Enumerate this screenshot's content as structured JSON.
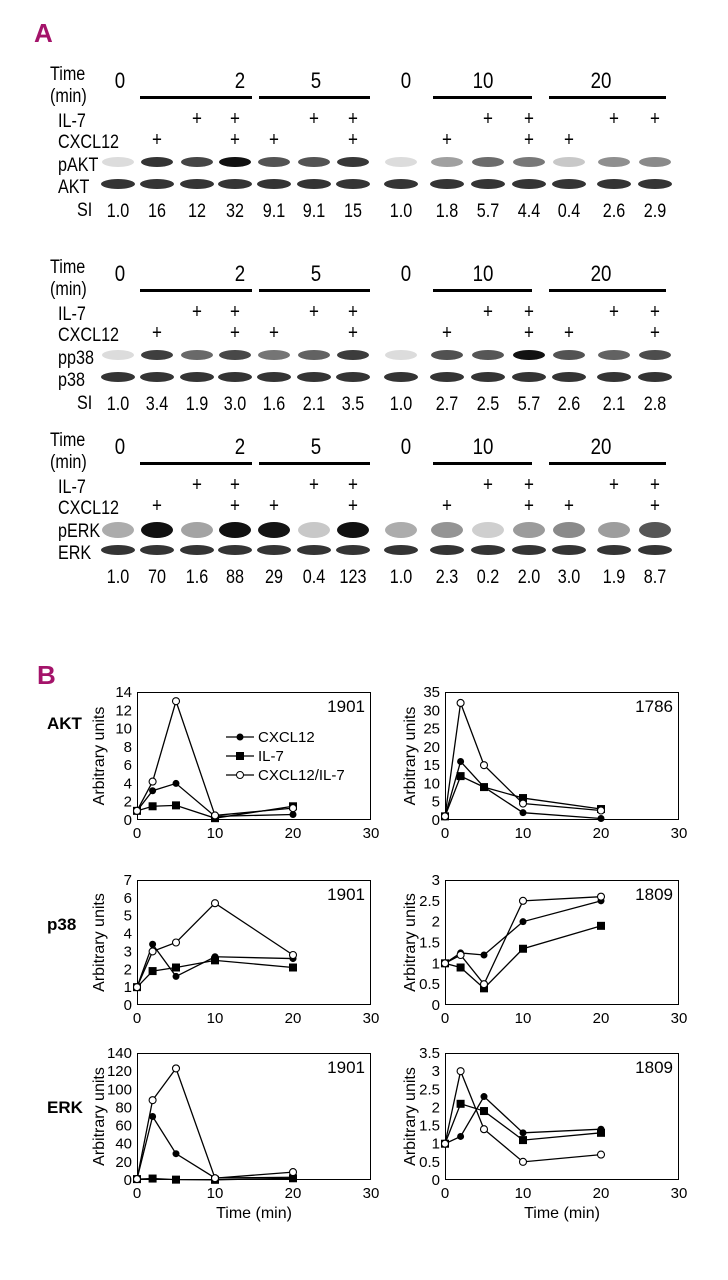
{
  "panel_a_label": "A",
  "panel_b_label": "B",
  "blot_labels": {
    "time": "Time",
    "min": "(min)",
    "il7": "IL-7",
    "cxcl12": "CXCL12",
    "si": "SI",
    "plus": "+"
  },
  "blots": [
    {
      "rows": [
        "pAKT",
        "AKT"
      ],
      "si_label": "SI",
      "times": [
        "0",
        "2",
        "5",
        "0",
        "10",
        "20"
      ],
      "il7": [
        false,
        false,
        true,
        true,
        false,
        true,
        true,
        false,
        false,
        true,
        true,
        false,
        true,
        true
      ],
      "cxcl12": [
        false,
        true,
        false,
        true,
        true,
        false,
        true,
        false,
        true,
        false,
        true,
        true,
        false,
        false
      ],
      "si": [
        "1.0",
        "16",
        "12",
        "32",
        "9.1",
        "9.1",
        "15",
        "1.0",
        "1.8",
        "5.7",
        "4.4",
        "0.4",
        "2.6",
        "2.9"
      ]
    },
    {
      "rows": [
        "pp38",
        "p38"
      ],
      "si_label": "SI",
      "times": [
        "0",
        "2",
        "5",
        "0",
        "10",
        "20"
      ],
      "il7": [
        false,
        false,
        true,
        true,
        false,
        true,
        true,
        false,
        false,
        true,
        true,
        false,
        true,
        true
      ],
      "cxcl12": [
        false,
        true,
        false,
        true,
        true,
        false,
        true,
        false,
        true,
        false,
        true,
        true,
        false,
        true
      ],
      "si": [
        "1.0",
        "3.4",
        "1.9",
        "3.0",
        "1.6",
        "2.1",
        "3.5",
        "1.0",
        "2.7",
        "2.5",
        "5.7",
        "2.6",
        "2.1",
        "2.8"
      ]
    },
    {
      "rows": [
        "pERK",
        "ERK"
      ],
      "si_label": "",
      "times": [
        "0",
        "2",
        "5",
        "0",
        "10",
        "20"
      ],
      "il7": [
        false,
        false,
        true,
        true,
        false,
        true,
        true,
        false,
        false,
        true,
        true,
        false,
        true,
        true
      ],
      "cxcl12": [
        false,
        true,
        false,
        true,
        true,
        false,
        true,
        false,
        true,
        false,
        true,
        true,
        false,
        true
      ],
      "si": [
        "1.0",
        "70",
        "1.6",
        "88",
        "29",
        "0.4",
        "123",
        "1.0",
        "2.3",
        "0.2",
        "2.0",
        "3.0",
        "1.9",
        "8.7"
      ]
    }
  ],
  "row_labels_b": [
    "AKT",
    "p38",
    "ERK"
  ],
  "legend": [
    "CXCL12",
    "IL-7",
    "CXCL12/IL-7"
  ],
  "chart_data": [
    {
      "type": "line",
      "id": "1901",
      "ylabel": "Arbitrary units",
      "xlabel": "",
      "xlim": [
        0,
        30
      ],
      "ylim": [
        0,
        14
      ],
      "yticks": [
        0,
        2,
        4,
        6,
        8,
        10,
        12,
        14
      ],
      "xticks": [
        0,
        10,
        20,
        30
      ],
      "x": [
        0,
        2,
        5,
        10,
        20
      ],
      "series": [
        {
          "name": "CXCL12",
          "values": [
            1.0,
            3.2,
            4.0,
            0.4,
            0.6
          ]
        },
        {
          "name": "IL-7",
          "values": [
            1.0,
            1.5,
            1.6,
            0.2,
            1.5
          ]
        },
        {
          "name": "CXCL12/IL-7",
          "values": [
            1.0,
            4.2,
            13.0,
            0.5,
            1.3
          ]
        }
      ]
    },
    {
      "type": "line",
      "id": "1786",
      "ylabel": "Arbitrary units",
      "xlabel": "",
      "xlim": [
        0,
        30
      ],
      "ylim": [
        0,
        35
      ],
      "yticks": [
        0,
        5,
        10,
        15,
        20,
        25,
        30,
        35
      ],
      "xticks": [
        0,
        10,
        20,
        30
      ],
      "x": [
        0,
        2,
        5,
        10,
        20
      ],
      "series": [
        {
          "name": "CXCL12",
          "values": [
            1.0,
            16,
            9,
            2,
            0.4
          ]
        },
        {
          "name": "IL-7",
          "values": [
            1.0,
            12,
            9,
            6,
            3
          ]
        },
        {
          "name": "CXCL12/IL-7",
          "values": [
            1.0,
            32,
            15,
            4.5,
            2.6
          ]
        }
      ]
    },
    {
      "type": "line",
      "id": "1901",
      "ylabel": "Arbitrary units",
      "xlabel": "",
      "xlim": [
        0,
        30
      ],
      "ylim": [
        0,
        7
      ],
      "yticks": [
        0,
        1,
        2,
        3,
        4,
        5,
        6,
        7
      ],
      "xticks": [
        0,
        10,
        20,
        30
      ],
      "x": [
        0,
        2,
        5,
        10,
        20
      ],
      "series": [
        {
          "name": "CXCL12",
          "values": [
            1.0,
            3.4,
            1.6,
            2.7,
            2.6
          ]
        },
        {
          "name": "IL-7",
          "values": [
            1.0,
            1.9,
            2.1,
            2.5,
            2.1
          ]
        },
        {
          "name": "CXCL12/IL-7",
          "values": [
            1.0,
            3.0,
            3.5,
            5.7,
            2.8
          ]
        }
      ]
    },
    {
      "type": "line",
      "id": "1809",
      "ylabel": "Arbitrary units",
      "xlabel": "",
      "xlim": [
        0,
        30
      ],
      "ylim": [
        0,
        3
      ],
      "yticks": [
        0,
        0.5,
        1,
        1.5,
        2,
        2.5,
        3
      ],
      "xticks": [
        0,
        10,
        20,
        30
      ],
      "x": [
        0,
        2,
        5,
        10,
        20
      ],
      "series": [
        {
          "name": "CXCL12",
          "values": [
            1.0,
            1.25,
            1.2,
            2.0,
            2.5
          ]
        },
        {
          "name": "IL-7",
          "values": [
            1.0,
            0.9,
            0.4,
            1.35,
            1.9
          ]
        },
        {
          "name": "CXCL12/IL-7",
          "values": [
            1.0,
            1.2,
            0.5,
            2.5,
            2.6
          ]
        }
      ]
    },
    {
      "type": "line",
      "id": "1901",
      "ylabel": "Arbitrary units",
      "xlabel": "Time (min)",
      "xlim": [
        0,
        30
      ],
      "ylim": [
        0,
        140
      ],
      "yticks": [
        0,
        20,
        40,
        60,
        80,
        100,
        120,
        140
      ],
      "xticks": [
        0,
        10,
        20,
        30
      ],
      "x": [
        0,
        2,
        5,
        10,
        20
      ],
      "series": [
        {
          "name": "CXCL12",
          "values": [
            1.0,
            70,
            29,
            2.3,
            3.0
          ]
        },
        {
          "name": "IL-7",
          "values": [
            1.0,
            1.6,
            0.4,
            0.2,
            1.9
          ]
        },
        {
          "name": "CXCL12/IL-7",
          "values": [
            1.0,
            88,
            123,
            2.0,
            8.7
          ]
        }
      ]
    },
    {
      "type": "line",
      "id": "1809",
      "ylabel": "Arbitrary units",
      "xlabel": "Time (min)",
      "xlim": [
        0,
        30
      ],
      "ylim": [
        0,
        3.5
      ],
      "yticks": [
        0,
        0.5,
        1,
        1.5,
        2,
        2.5,
        3,
        3.5
      ],
      "xticks": [
        0,
        10,
        20,
        30
      ],
      "x": [
        0,
        2,
        5,
        10,
        20
      ],
      "series": [
        {
          "name": "CXCL12",
          "values": [
            1.0,
            1.2,
            2.3,
            1.3,
            1.4
          ]
        },
        {
          "name": "IL-7",
          "values": [
            1.0,
            2.1,
            1.9,
            1.1,
            1.3
          ]
        },
        {
          "name": "CXCL12/IL-7",
          "values": [
            1.0,
            3.0,
            1.4,
            0.5,
            0.7
          ]
        }
      ]
    }
  ]
}
